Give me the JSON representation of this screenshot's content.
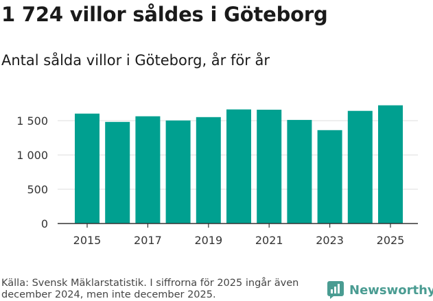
{
  "headline": "1 724 villor såldes i Göteborg",
  "chart_data": {
    "type": "bar",
    "title": "Antal sålda villor i Göteborg, år för år",
    "categories": [
      "2015",
      "2016",
      "2017",
      "2018",
      "2019",
      "2020",
      "2021",
      "2022",
      "2023",
      "2024",
      "2025"
    ],
    "values": [
      1603,
      1482,
      1564,
      1503,
      1552,
      1664,
      1660,
      1511,
      1362,
      1643,
      1724
    ],
    "xticks": [
      "2015",
      "2017",
      "2019",
      "2021",
      "2023",
      "2025"
    ],
    "yticks": [
      0,
      500,
      1000,
      1500
    ],
    "ytick_labels": [
      "0",
      "500",
      "1 000",
      "1 500"
    ],
    "ylim": [
      0,
      1800
    ],
    "xlabel": "",
    "ylabel": "",
    "grid": true,
    "bar_color": "#00a090"
  },
  "source": "Källa: Svensk Mäklarstatistik. I siffrorna för 2025 ingår även december 2024, men inte december 2025.",
  "brand": {
    "name": "Newsworthy",
    "icon": "newsworthy-logo-icon",
    "color": "#4a9c92"
  }
}
